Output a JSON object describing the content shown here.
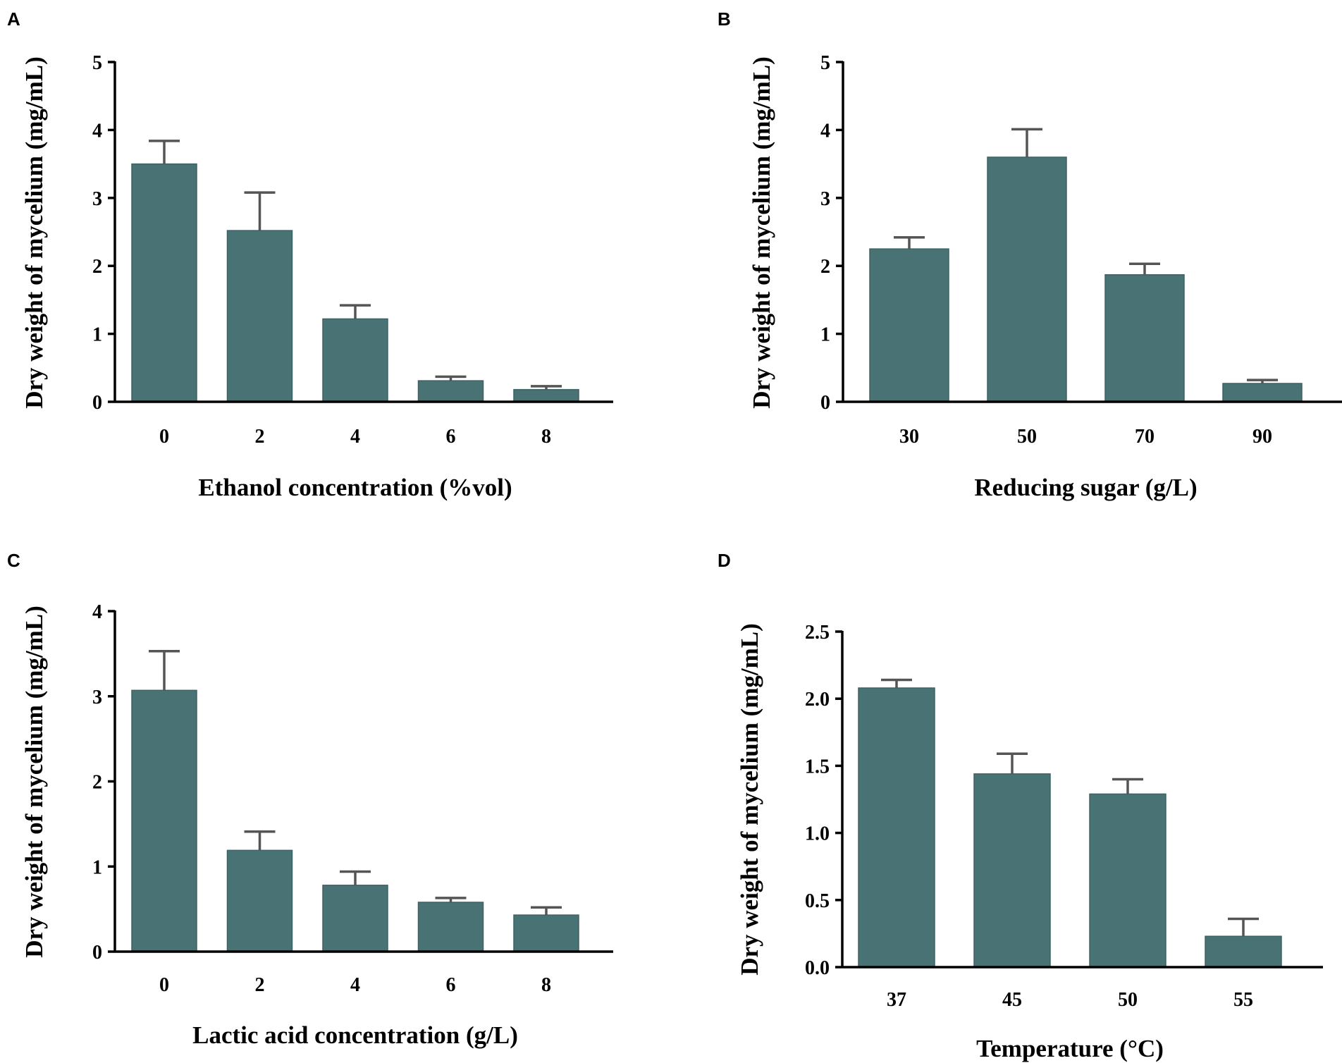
{
  "colors": {
    "bar": "#487274",
    "error_bar": "#555555",
    "axis": "#000000"
  },
  "chart_data": [
    {
      "panel": "A",
      "type": "bar",
      "title": "",
      "xlabel": "Ethanol concentration (%vol)",
      "ylabel": "Dry weight of mycelium (mg/mL)",
      "categories": [
        "0",
        "2",
        "4",
        "6",
        "8"
      ],
      "values": [
        3.5,
        2.52,
        1.22,
        0.31,
        0.18
      ],
      "errors": [
        0.34,
        0.56,
        0.2,
        0.06,
        0.05
      ],
      "ylim": [
        0,
        5
      ],
      "yticks": [
        "0",
        "1",
        "2",
        "3",
        "4",
        "5"
      ],
      "ytick_values": [
        0,
        1,
        2,
        3,
        4,
        5
      ]
    },
    {
      "panel": "B",
      "type": "bar",
      "title": "",
      "xlabel": "Reducing sugar (g/L)",
      "ylabel": "Dry weight of mycelium (mg/mL)",
      "categories": [
        "30",
        "50",
        "70",
        "90"
      ],
      "values": [
        2.25,
        3.6,
        1.87,
        0.27
      ],
      "errors": [
        0.17,
        0.41,
        0.16,
        0.05
      ],
      "ylim": [
        0,
        5
      ],
      "yticks": [
        "0",
        "1",
        "2",
        "3",
        "4",
        "5"
      ],
      "ytick_values": [
        0,
        1,
        2,
        3,
        4,
        5
      ]
    },
    {
      "panel": "C",
      "type": "bar",
      "title": "",
      "xlabel": "Lactic acid concentration (g/L)",
      "ylabel": "Dry weight of mycelium (mg/mL)",
      "categories": [
        "0",
        "2",
        "4",
        "6",
        "8"
      ],
      "values": [
        3.07,
        1.19,
        0.78,
        0.58,
        0.43
      ],
      "errors": [
        0.46,
        0.22,
        0.16,
        0.05,
        0.09
      ],
      "ylim": [
        0,
        4
      ],
      "yticks": [
        "0",
        "1",
        "2",
        "3",
        "4"
      ],
      "ytick_values": [
        0,
        1,
        2,
        3,
        4
      ]
    },
    {
      "panel": "D",
      "type": "bar",
      "title": "",
      "xlabel": "Temperature (°C)",
      "ylabel": "Dry weight of mycelium (mg/mL)",
      "categories": [
        "37",
        "45",
        "50",
        "55"
      ],
      "values": [
        2.08,
        1.44,
        1.29,
        0.23
      ],
      "errors": [
        0.06,
        0.15,
        0.11,
        0.13
      ],
      "ylim": [
        0,
        2.5
      ],
      "yticks": [
        "0.0",
        "0.5",
        "1.0",
        "1.5",
        "2.0",
        "2.5"
      ],
      "ytick_values": [
        0,
        0.5,
        1.0,
        1.5,
        2.0,
        2.5
      ]
    }
  ]
}
